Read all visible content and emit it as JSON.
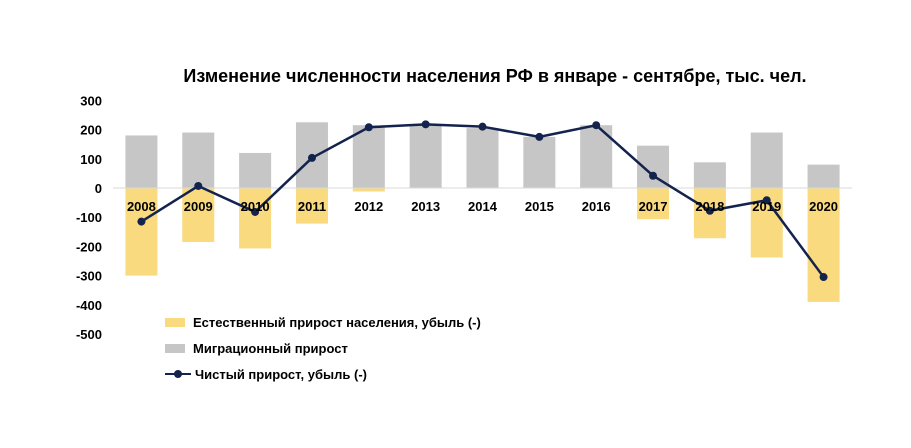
{
  "chart_data": {
    "type": "bar",
    "title": "Изменение численности населения РФ в январе - сентябре, тыс. чел.",
    "categories": [
      "2008",
      "2009",
      "2010",
      "2011",
      "2012",
      "2013",
      "2014",
      "2015",
      "2016",
      "2017",
      "2018",
      "2019",
      "2020"
    ],
    "ylim": [
      -500,
      300
    ],
    "yticks": [
      300,
      200,
      100,
      0,
      -100,
      -200,
      -300,
      -400,
      -500
    ],
    "grid": false,
    "legend_position": "bottom-left",
    "series": [
      {
        "name": "Естественный прирост населения, убыль (-)",
        "type": "bar",
        "color": "#f9da7f",
        "values": [
          -300,
          -185,
          -207,
          -122,
          -12,
          5,
          30,
          8,
          18,
          -107,
          -172,
          -238,
          -390
        ]
      },
      {
        "name": "Миграционный прирост",
        "type": "bar",
        "color": "#c6c6c6",
        "values": [
          180,
          190,
          120,
          225,
          215,
          215,
          205,
          175,
          215,
          145,
          88,
          190,
          80
        ]
      },
      {
        "name": "Чистый прирост, убыль (-)",
        "type": "line",
        "color": "#13234e",
        "values": [
          -115,
          7,
          -82,
          103,
          208,
          218,
          210,
          175,
          215,
          42,
          -78,
          -42,
          -305
        ]
      }
    ]
  }
}
